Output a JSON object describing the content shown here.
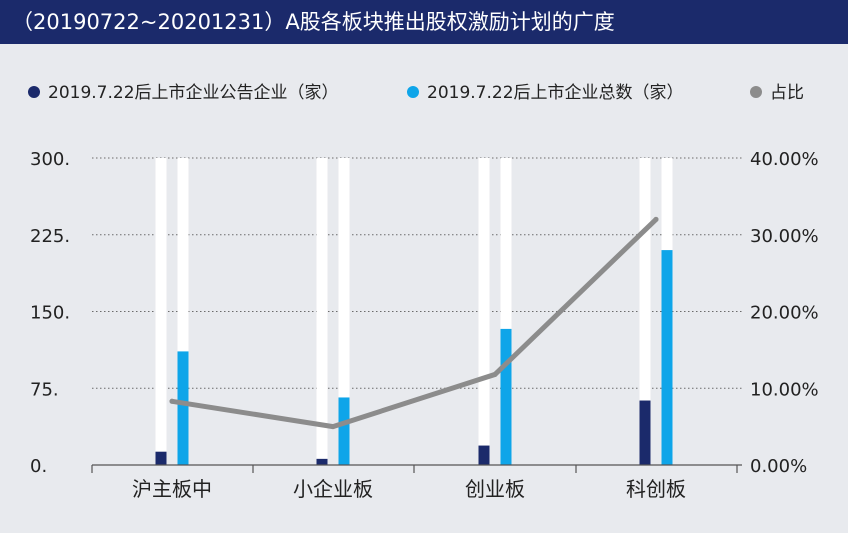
{
  "chart_data": {
    "type": "bar",
    "title": "（20190722~20201231）A股各板块推出股权激励计划的广度",
    "categories": [
      "沪主板中",
      "小企业板",
      "创业板",
      "科创板"
    ],
    "series": [
      {
        "name": "2019.7.22后上市企业公告企业（家）",
        "axis": "left",
        "kind": "bar",
        "color": "#1b2a6b",
        "values": [
          13,
          6,
          19,
          63
        ]
      },
      {
        "name": "2019.7.22后上市企业总数（家）",
        "axis": "left",
        "kind": "bar",
        "color": "#0ea5e9",
        "values": [
          111,
          66,
          133,
          210
        ]
      },
      {
        "name": "占比",
        "axis": "right",
        "kind": "line",
        "color": "#8c8c8c",
        "values": [
          8.3,
          5.0,
          11.8,
          32.0
        ]
      }
    ],
    "y_left": {
      "min": 0,
      "max": 300,
      "ticks": [
        0,
        75,
        150,
        225,
        300
      ],
      "tick_labels": [
        "0.",
        "75.",
        "150.",
        "225.",
        "300."
      ]
    },
    "y_right": {
      "min": 0,
      "max": 40,
      "ticks": [
        0,
        10,
        20,
        30,
        40
      ],
      "tick_labels": [
        "0.00%",
        "10.00%",
        "20.00%",
        "30.00%",
        "40.00%"
      ]
    },
    "grid": "dotted-horizontal",
    "legend_position": "top"
  }
}
